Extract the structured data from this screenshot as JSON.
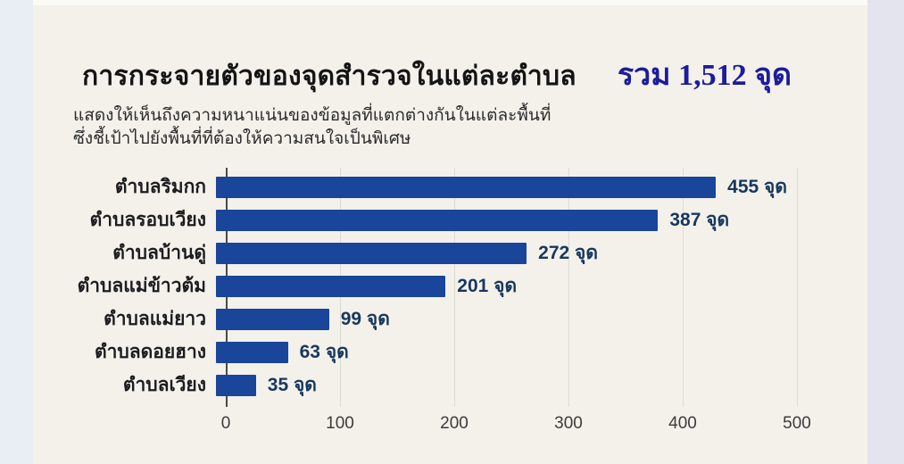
{
  "page": {
    "title": "การกระจายตัวของจุดสำรวจในแต่ละตำบล",
    "total_label": "รวม 1,512 จุด",
    "subtitle_line1": "แสดงให้เห็นถึงความหนาแน่นของข้อมูลที่แตกต่างกันในแต่ละพื้นที่",
    "subtitle_line2": "ซึ่งชี้เป้าไปยังพื้นที่ที่ต้องให้ความสนใจเป็นพิเศษ"
  },
  "chart_data": {
    "type": "bar",
    "orientation": "horizontal",
    "title": "การกระจายตัวของจุดสำรวจในแต่ละตำบล",
    "categories": [
      "ตำบลริมกก",
      "ตำบลรอบเวียง",
      "ตำบลบ้านดู่",
      "ตำบลแม่ข้าวต้ม",
      "ตำบลแม่ยาว",
      "ตำบลดอยฮาง",
      "ตำบลเวียง"
    ],
    "values": [
      455,
      387,
      272,
      201,
      99,
      63,
      35
    ],
    "value_labels": [
      "455 จุด",
      "387 จุด",
      "272 จุด",
      "201 จุด",
      "99 จุด",
      "63 จุด",
      "35 จุด"
    ],
    "unit": "จุด",
    "total": 1512,
    "xlabel": "",
    "ylabel": "",
    "xlim": [
      0,
      500
    ],
    "x_ticks": [
      0,
      100,
      200,
      300,
      400,
      500
    ],
    "x_tick_labels": [
      "0",
      "100",
      "200",
      "300",
      "400",
      "500"
    ],
    "grid": "vertical",
    "legend": "none"
  },
  "colors": {
    "bar": "#19459a",
    "value_label": "#17375f",
    "total_text": "#1c1c9c",
    "background": "#f3f1ea",
    "gridline": "#dcdbd4",
    "zero_axis": "#4a4a4a"
  }
}
